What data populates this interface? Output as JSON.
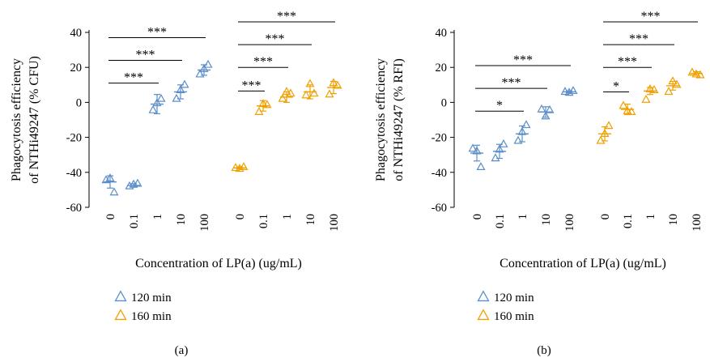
{
  "legend": [
    {
      "label": "120 min",
      "color": "#5b8ec9"
    },
    {
      "label": "160 min",
      "color": "#f0a000"
    }
  ],
  "chart_data": [
    {
      "type": "scatter",
      "caption": "(a)",
      "ylabel_lines": [
        "Phagocytosis efficiency",
        "of NTHi49247 (% CFU)"
      ],
      "xlabel": "Concentration of LP(a) (ug/mL)",
      "ylim": [
        -60,
        40
      ],
      "yticks": [
        "40",
        "20",
        "0",
        "-20",
        "-40",
        "-60"
      ],
      "categories": [
        "0",
        "0.1",
        "1",
        "10",
        "100"
      ],
      "series": [
        {
          "name": "120 min",
          "color": "#5b8ec9",
          "groups": [
            {
              "x": "0",
              "mean": -45.5,
              "sd": 3.5,
              "points": [
                -44.5,
                -43.5,
                -51.5
              ]
            },
            {
              "x": "0.1",
              "mean": -47.5,
              "sd": 1.0,
              "points": [
                -48.0,
                -47.0,
                -46.5
              ]
            },
            {
              "x": "1",
              "mean": -1.0,
              "sd": 5.5,
              "points": [
                -4.5,
                -0.5,
                2.0
              ]
            },
            {
              "x": "10",
              "mean": 6.0,
              "sd": 4.0,
              "points": [
                2.0,
                7.0,
                10.0
              ]
            },
            {
              "x": "100",
              "mean": 18.5,
              "sd": 3.0,
              "points": [
                16.0,
                19.0,
                21.5
              ]
            }
          ]
        },
        {
          "name": "160 min",
          "color": "#f0a000",
          "groups": [
            {
              "x": "0",
              "mean": -37.5,
              "sd": 0.6,
              "points": [
                -37.5,
                -38.0,
                -37.0
              ]
            },
            {
              "x": "0.1",
              "mean": -2.0,
              "sd": 3.0,
              "points": [
                -5.5,
                -1.0,
                -1.5
              ]
            },
            {
              "x": "1",
              "mean": 3.0,
              "sd": 3.0,
              "points": [
                2.0,
                6.0,
                5.0
              ]
            },
            {
              "x": "10",
              "mean": 6.0,
              "sd": 4.0,
              "points": [
                4.0,
                10.5,
                5.0
              ]
            },
            {
              "x": "100",
              "mean": 8.5,
              "sd": 3.5,
              "points": [
                4.5,
                11.0,
                9.5
              ]
            }
          ]
        }
      ],
      "significance": [
        {
          "series": 0,
          "from": 0,
          "to": 2,
          "y": 11,
          "label": "***"
        },
        {
          "series": 0,
          "from": 0,
          "to": 3,
          "y": 24,
          "label": "***"
        },
        {
          "series": 0,
          "from": 0,
          "to": 4,
          "y": 37,
          "label": "***"
        },
        {
          "series": 1,
          "from": 0,
          "to": 1,
          "y": 6.5,
          "label": "***"
        },
        {
          "series": 1,
          "from": 0,
          "to": 2,
          "y": 20,
          "label": "***"
        },
        {
          "series": 1,
          "from": 0,
          "to": 3,
          "y": 33,
          "label": "***"
        },
        {
          "series": 1,
          "from": 0,
          "to": 4,
          "y": 46,
          "label": "***"
        }
      ]
    },
    {
      "type": "scatter",
      "caption": "(b)",
      "ylabel_lines": [
        "Phagocytosis efficiency",
        "of NTHi49247 (% RFI)"
      ],
      "xlabel": "Concentration of LP(a) (ug/mL)",
      "ylim": [
        -60,
        40
      ],
      "yticks": [
        "40",
        "20",
        "0",
        "-20",
        "-40",
        "-60"
      ],
      "categories": [
        "0",
        "0.1",
        "1",
        "10",
        "100"
      ],
      "series": [
        {
          "name": "120 min",
          "color": "#5b8ec9",
          "groups": [
            {
              "x": "0",
              "mean": -29.0,
              "sd": 4.5,
              "points": [
                -26.5,
                -28.0,
                -37.0
              ]
            },
            {
              "x": "0.1",
              "mean": -28.0,
              "sd": 4.0,
              "points": [
                -32.0,
                -27.0,
                -24.0
              ]
            },
            {
              "x": "1",
              "mean": -18.0,
              "sd": 4.5,
              "points": [
                -22.0,
                -17.0,
                -13.0
              ]
            },
            {
              "x": "10",
              "mean": -5.5,
              "sd": 3.0,
              "points": [
                -4.0,
                -8.0,
                -4.5
              ]
            },
            {
              "x": "100",
              "mean": 6.0,
              "sd": 0.6,
              "points": [
                6.0,
                5.5,
                6.5
              ]
            }
          ]
        },
        {
          "name": "160 min",
          "color": "#f0a000",
          "groups": [
            {
              "x": "0",
              "mean": -18.0,
              "sd": 4.0,
              "points": [
                -22.0,
                -18.0,
                -13.5
              ]
            },
            {
              "x": "0.1",
              "mean": -4.0,
              "sd": 3.0,
              "points": [
                -2.0,
                -5.0,
                -5.5
              ]
            },
            {
              "x": "1",
              "mean": 6.5,
              "sd": 2.0,
              "points": [
                1.5,
                7.5,
                7.0
              ]
            },
            {
              "x": "10",
              "mean": 9.5,
              "sd": 2.5,
              "points": [
                6.0,
                12.0,
                10.0
              ]
            },
            {
              "x": "100",
              "mean": 16.5,
              "sd": 1.0,
              "points": [
                17.0,
                16.0,
                15.5
              ]
            }
          ]
        }
      ],
      "significance": [
        {
          "series": 0,
          "from": 0,
          "to": 2,
          "y": -5,
          "label": "*"
        },
        {
          "series": 0,
          "from": 0,
          "to": 3,
          "y": 8,
          "label": "***"
        },
        {
          "series": 0,
          "from": 0,
          "to": 4,
          "y": 21,
          "label": "***"
        },
        {
          "series": 1,
          "from": 0,
          "to": 1,
          "y": 6,
          "label": "*"
        },
        {
          "series": 1,
          "from": 0,
          "to": 2,
          "y": 20,
          "label": "***"
        },
        {
          "series": 1,
          "from": 0,
          "to": 3,
          "y": 33,
          "label": "***"
        },
        {
          "series": 1,
          "from": 0,
          "to": 4,
          "y": 46,
          "label": "***"
        }
      ]
    }
  ]
}
